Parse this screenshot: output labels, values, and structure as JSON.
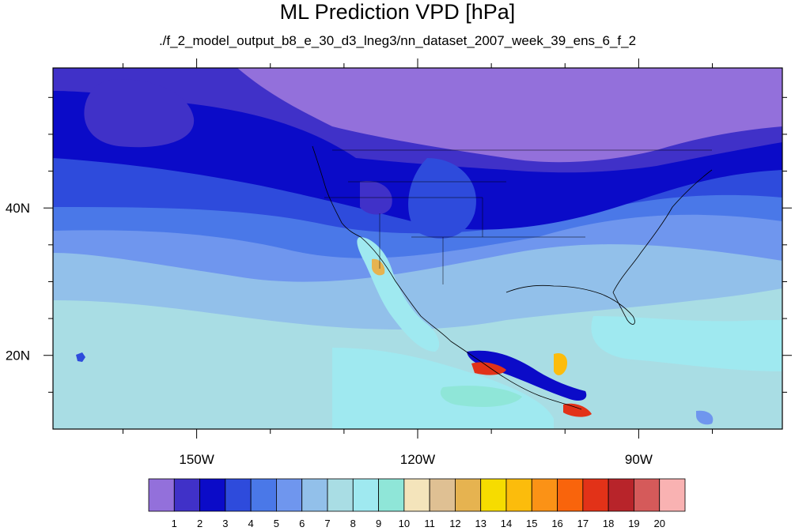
{
  "title": "ML Prediction VPD [hPa]",
  "subtitle": "./f_2_model_output_b8_e_30_d3_lneg3/nn_dataset_2007_week_39_ens_6_f_2",
  "map": {
    "projection": "cylindrical equidistant",
    "lon_range": [
      -169.5,
      -70.5
    ],
    "lat_range": [
      10,
      59
    ],
    "lon_ticks": [
      {
        "value": -150,
        "label": "150W"
      },
      {
        "value": -120,
        "label": "120W"
      },
      {
        "value": -90,
        "label": "90W"
      }
    ],
    "lat_ticks": [
      {
        "value": 40,
        "label": "40N"
      },
      {
        "value": 20,
        "label": "20N"
      }
    ],
    "features": [
      "coastlines",
      "country borders",
      "US state boundaries"
    ]
  },
  "colorbar": {
    "labels": [
      "1",
      "2",
      "3",
      "4",
      "5",
      "6",
      "7",
      "8",
      "9",
      "10",
      "11",
      "12",
      "13",
      "14",
      "15",
      "16",
      "17",
      "18",
      "19",
      "20"
    ],
    "colors": [
      "#9370db",
      "#4031c8",
      "#0b0bc8",
      "#2e4bdc",
      "#4a78e8",
      "#6f96ee",
      "#92c0ea",
      "#a9dde4",
      "#9fe9f0",
      "#8fe6d8",
      "#f4e4bb",
      "#dfc093",
      "#e6b350",
      "#f6dc00",
      "#fcbc0c",
      "#fb9216",
      "#f9640c",
      "#e23218",
      "#b8242a",
      "#d55a5a",
      "#f9b2b2"
    ]
  }
}
